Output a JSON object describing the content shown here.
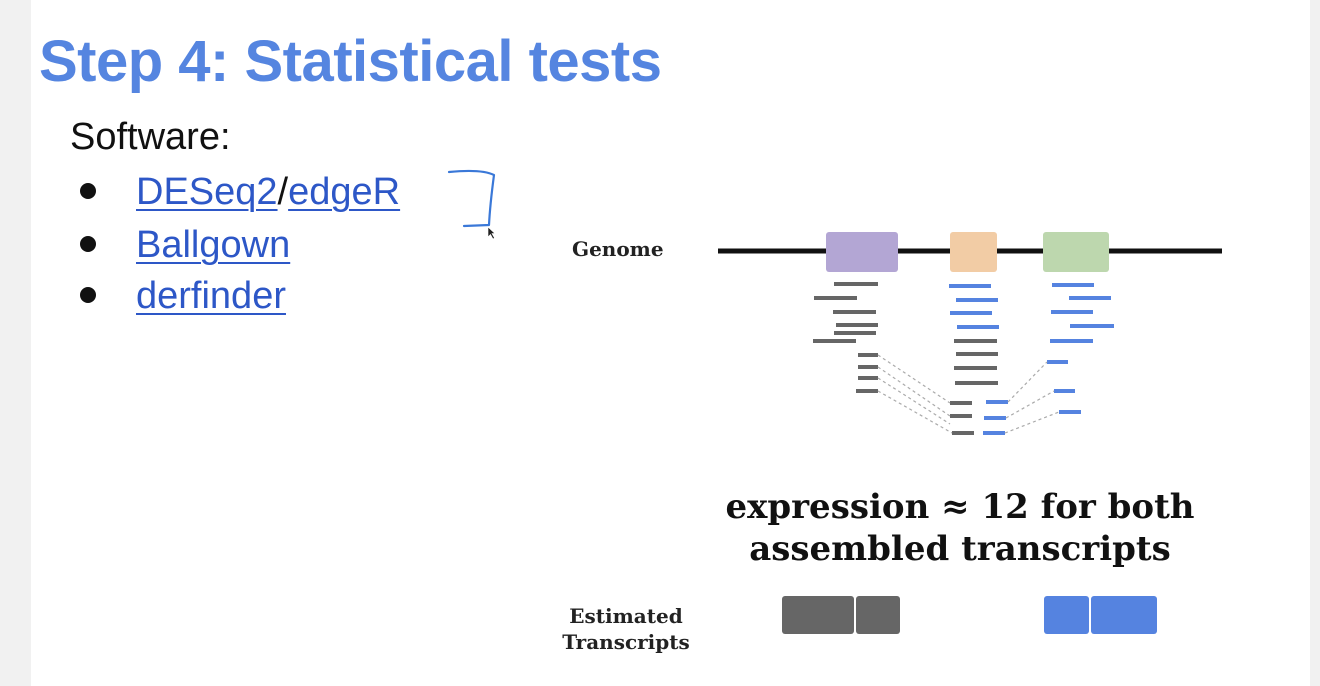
{
  "slide": {
    "title": "Step 4: Statistical tests",
    "software_label": "Software:",
    "bullets": [
      {
        "links": [
          "DESeq2",
          "edgeR"
        ],
        "separator": "/"
      },
      {
        "links": [
          "Ballgown"
        ]
      },
      {
        "links": [
          "derfinder"
        ]
      }
    ]
  },
  "figure": {
    "genome_label": "Genome",
    "caption_line1": "expression ≈ 12 for both",
    "caption_line2": "assembled transcripts",
    "estimated_label_line1": "Estimated",
    "estimated_label_line2": "Transcripts",
    "colors": {
      "exon1": "#b3a6d4",
      "exon2": "#f2cca5",
      "exon3": "#bdd7ae",
      "gray_read": "#666666",
      "blue_read": "#5583e0",
      "genome_line": "#111111",
      "annotation": "#3a78d8"
    }
  }
}
